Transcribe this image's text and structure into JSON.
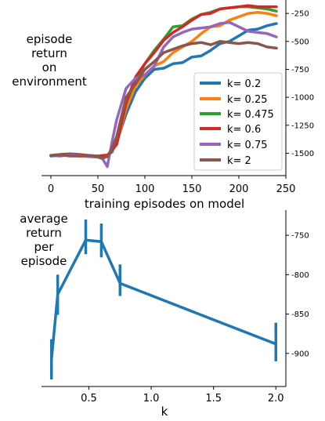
{
  "chart_data": [
    {
      "type": "line",
      "xlabel": "training episodes on model",
      "ylabel_lines": [
        "episode",
        "return",
        "on",
        "environment"
      ],
      "xlim": [
        -10,
        250
      ],
      "ylim": [
        -1700,
        -130
      ],
      "xticks": [
        0,
        50,
        100,
        150,
        200,
        250
      ],
      "xtick_labels": [
        "0",
        "50",
        "100",
        "150",
        "200",
        "250"
      ],
      "yticks": [
        -1500,
        -1250,
        -1000,
        -750,
        -500,
        -250
      ],
      "ytick_labels": [
        "-1500",
        "-1250",
        "-1000",
        "-750",
        "-500",
        "-250"
      ],
      "legend_position": "lower-right",
      "x": [
        0,
        10,
        20,
        30,
        40,
        50,
        55,
        60,
        65,
        70,
        80,
        90,
        100,
        110,
        120,
        130,
        140,
        150,
        160,
        170,
        180,
        190,
        200,
        210,
        220,
        230,
        240
      ],
      "series": [
        {
          "name": "k= 0.2",
          "color": "#1f77b4",
          "values": [
            -1525,
            -1520,
            -1520,
            -1525,
            -1520,
            -1525,
            -1525,
            -1515,
            -1490,
            -1400,
            -1150,
            -950,
            -830,
            -750,
            -740,
            -700,
            -690,
            -640,
            -630,
            -580,
            -520,
            -500,
            -450,
            -400,
            -390,
            -360,
            -340
          ]
        },
        {
          "name": "k= 0.25",
          "color": "#ff7f0e",
          "values": [
            -1520,
            -1520,
            -1515,
            -1525,
            -1530,
            -1525,
            -1520,
            -1515,
            -1480,
            -1420,
            -1100,
            -900,
            -800,
            -720,
            -680,
            -600,
            -550,
            -500,
            -430,
            -370,
            -360,
            -310,
            -280,
            -250,
            -240,
            -250,
            -270
          ]
        },
        {
          "name": "k= 0.475",
          "color": "#2ca02c",
          "values": [
            -1520,
            -1510,
            -1505,
            -1510,
            -1520,
            -1525,
            -1530,
            -1525,
            -1480,
            -1400,
            -1050,
            -850,
            -700,
            -580,
            -480,
            -370,
            -360,
            -300,
            -260,
            -240,
            -210,
            -200,
            -190,
            -190,
            -200,
            -210,
            -230
          ]
        },
        {
          "name": "k= 0.6",
          "color": "#d62728",
          "values": [
            -1520,
            -1515,
            -1505,
            -1515,
            -1520,
            -1530,
            -1520,
            -1520,
            -1470,
            -1420,
            -1050,
            -820,
            -700,
            -600,
            -490,
            -420,
            -370,
            -310,
            -260,
            -250,
            -210,
            -200,
            -190,
            -180,
            -190,
            -190,
            -190
          ]
        },
        {
          "name": "k= 0.75",
          "color": "#9467bd",
          "values": [
            -1520,
            -1525,
            -1515,
            -1520,
            -1530,
            -1535,
            -1550,
            -1620,
            -1400,
            -1200,
            -920,
            -830,
            -800,
            -720,
            -550,
            -460,
            -420,
            -390,
            -380,
            -370,
            -340,
            -330,
            -370,
            -410,
            -420,
            -430,
            -460
          ]
        },
        {
          "name": "k= 2",
          "color": "#8c564b",
          "values": [
            -1520,
            -1515,
            -1525,
            -1525,
            -1520,
            -1530,
            -1545,
            -1530,
            -1460,
            -1350,
            -1000,
            -880,
            -750,
            -680,
            -600,
            -570,
            -540,
            -520,
            -510,
            -530,
            -500,
            -510,
            -520,
            -510,
            -520,
            -550,
            -560
          ]
        }
      ]
    },
    {
      "type": "errorbar",
      "xlabel": "k",
      "ylabel_lines": [
        "average",
        "return",
        "per",
        "episode"
      ],
      "xlim": [
        0.12,
        2.08
      ],
      "ylim": [
        -942,
        -718
      ],
      "xticks": [
        0.5,
        1.0,
        1.5,
        2.0
      ],
      "xtick_labels": [
        "0.5",
        "1.0",
        "1.5",
        "2.0"
      ],
      "yticks": [
        -900,
        -850,
        -800,
        -750
      ],
      "ytick_labels": [
        "-900",
        "-850",
        "-800",
        "-750"
      ],
      "color": "#1f77b4",
      "x": [
        0.2,
        0.25,
        0.475,
        0.6,
        0.75,
        2.0
      ],
      "values": [
        -908,
        -825,
        -756,
        -758,
        -811,
        -888
      ],
      "err_low": [
        -933,
        -851,
        -774,
        -778,
        -827,
        -910
      ],
      "err_high": [
        -882,
        -800,
        -730,
        -735,
        -787,
        -861
      ]
    }
  ]
}
